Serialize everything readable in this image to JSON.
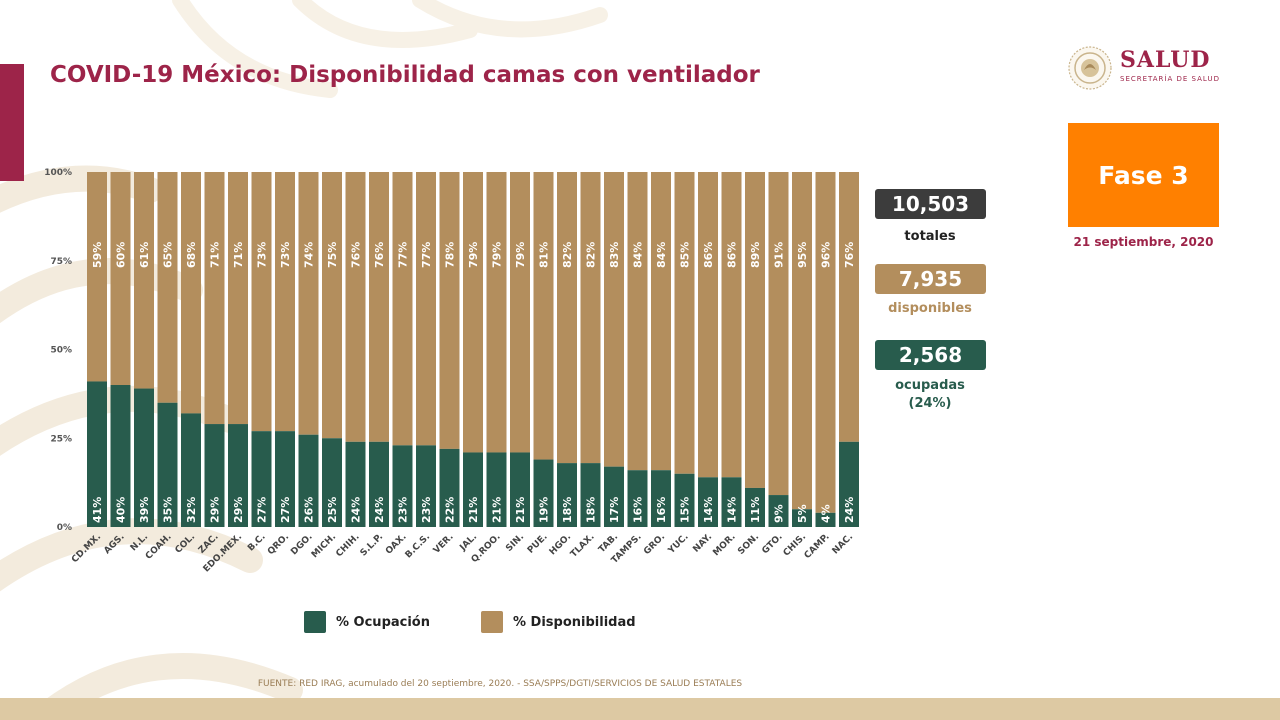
{
  "header": {
    "title": "COVID-19 México: Disponibilidad camas con ventilador",
    "logo_word": "SALUD",
    "logo_sub": "SECRETARÍA DE SALUD"
  },
  "phase": {
    "label": "Fase 3",
    "date": "21 septiembre, 2020"
  },
  "stats": {
    "totales_value": "10,503",
    "totales_label": "totales",
    "disponibles_value": "7,935",
    "disponibles_label": "disponibles",
    "ocupadas_value": "2,568",
    "ocupadas_label": "ocupadas",
    "ocupadas_pct": "(24%)"
  },
  "legend": {
    "ocupacion": "% Ocupación",
    "disponibilidad": "% Disponibilidad"
  },
  "source": "FUENTE: RED IRAG, acumulado del 20 septiembre, 2020. -  SSA/SPPS/DGTI/SERVICIOS DE SALUD ESTATALES",
  "colors": {
    "ocupacion": "#285c4d",
    "disponibilidad": "#b38e5d",
    "accent": "#9d2449",
    "phase": "#ff8000",
    "totales_box": "#3c3c3c"
  },
  "chart_data": {
    "type": "bar",
    "stacked": true,
    "categories": [
      "CD.MX.",
      "AGS.",
      "N.L.",
      "COAH.",
      "COL.",
      "ZAC.",
      "EDO.MEX.",
      "B.C.",
      "QRO.",
      "DGO.",
      "MICH.",
      "CHIH.",
      "S.L.P.",
      "OAX.",
      "B.C.S.",
      "VER.",
      "JAL.",
      "Q.ROO.",
      "SIN.",
      "PUE.",
      "HGO.",
      "TLAX.",
      "TAB.",
      "TAMPS.",
      "GRO.",
      "YUC.",
      "NAY.",
      "MOR.",
      "SON.",
      "GTO.",
      "CHIS.",
      "CAMP.",
      "NAC."
    ],
    "series": [
      {
        "name": "% Ocupación",
        "values": [
          41,
          40,
          39,
          35,
          32,
          29,
          29,
          27,
          27,
          26,
          25,
          24,
          24,
          23,
          23,
          22,
          21,
          21,
          21,
          19,
          18,
          18,
          17,
          16,
          16,
          15,
          14,
          14,
          11,
          9,
          5,
          4,
          24
        ]
      },
      {
        "name": "% Disponibilidad",
        "values": [
          59,
          60,
          61,
          65,
          68,
          71,
          71,
          73,
          73,
          74,
          75,
          76,
          76,
          77,
          77,
          78,
          79,
          79,
          79,
          81,
          82,
          82,
          83,
          84,
          84,
          85,
          86,
          86,
          89,
          91,
          95,
          96,
          76
        ]
      }
    ],
    "yticks": [
      "0%",
      "25%",
      "50%",
      "75%",
      "100%"
    ],
    "ylim": [
      0,
      100
    ],
    "legend_position": "bottom"
  }
}
